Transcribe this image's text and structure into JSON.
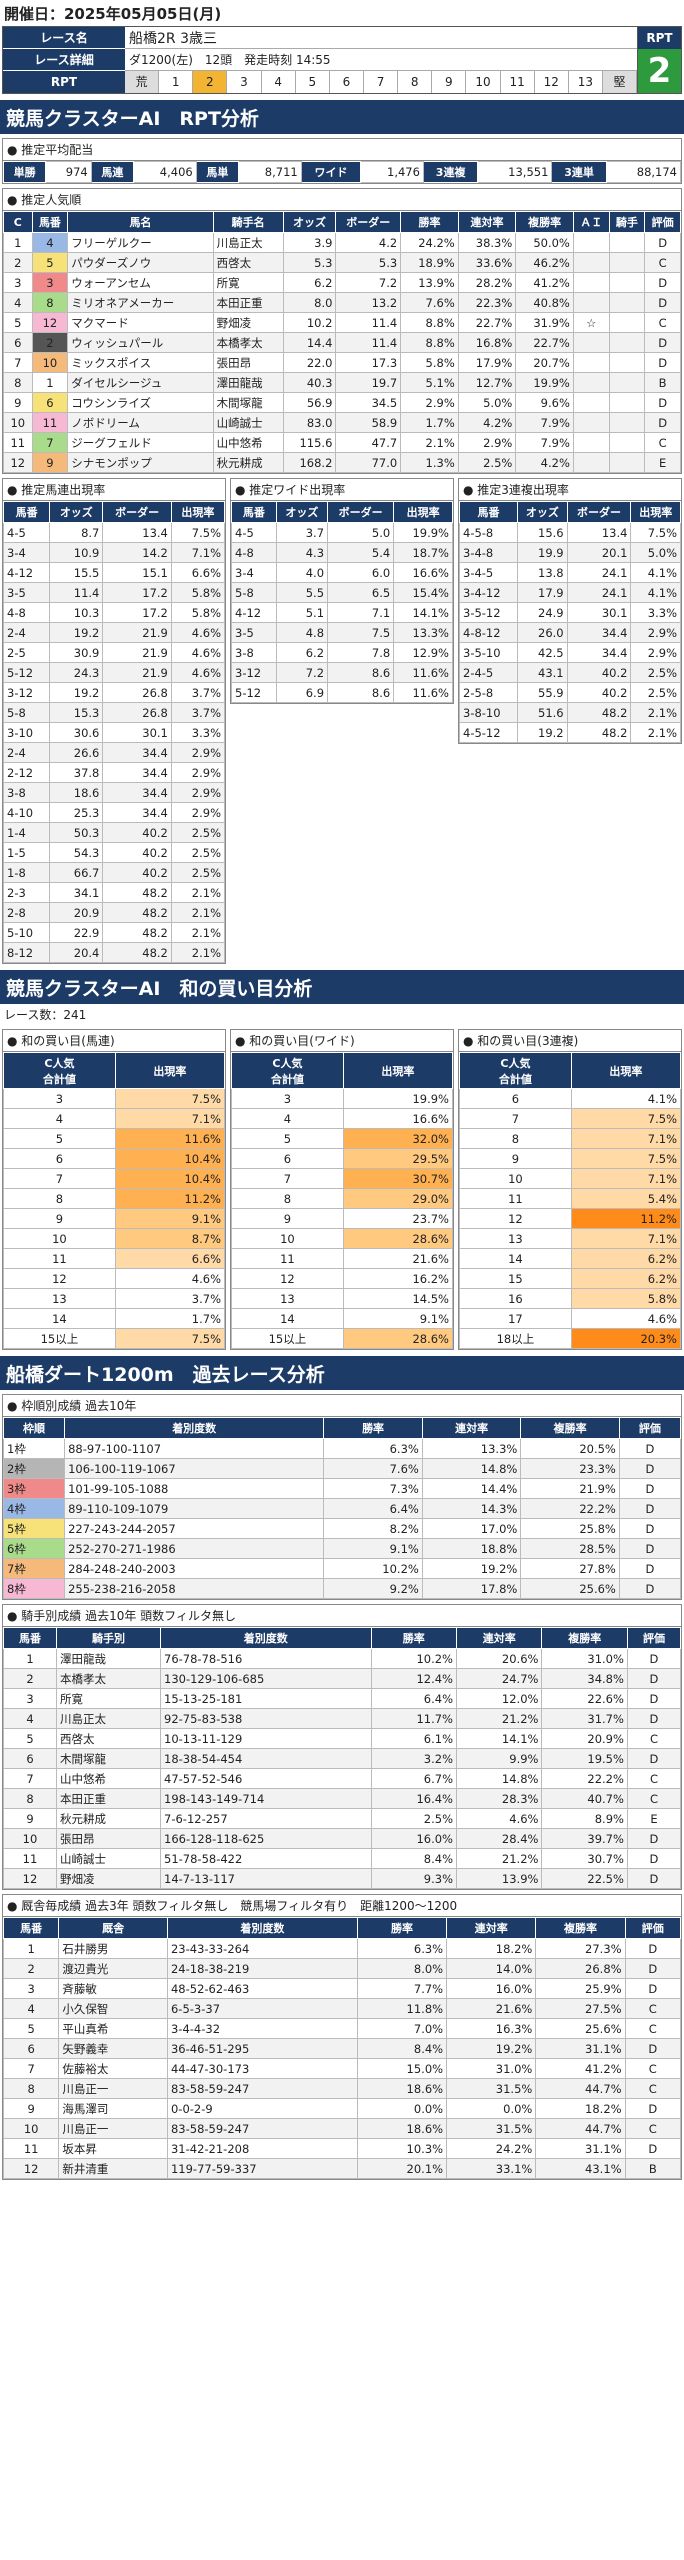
{
  "header": {
    "date": "開催日：2025年05月05日(月)",
    "race_name_label": "レース名",
    "race_name": "船橋2R 3歳三",
    "race_detail_label": "レース詳細",
    "race_detail": "ダ1200(左)　12頭　発走時刻 14:55",
    "rpt_label": "RPT",
    "rpt_value": "2",
    "rpt_scale": [
      "荒",
      "1",
      "2",
      "3",
      "4",
      "5",
      "6",
      "7",
      "8",
      "9",
      "10",
      "11",
      "12",
      "13",
      "堅"
    ]
  },
  "sec1": "競馬クラスターAI　RPT分析",
  "payout": {
    "title": "● 推定平均配当",
    "items": [
      [
        "単勝",
        "974"
      ],
      [
        "馬連",
        "4,406"
      ],
      [
        "馬単",
        "8,711"
      ],
      [
        "ワイド",
        "1,476"
      ],
      [
        "3連複",
        "13,551"
      ],
      [
        "3連単",
        "88,174"
      ]
    ]
  },
  "pop": {
    "title": "● 推定人気順",
    "headers": [
      "C",
      "馬番",
      "馬名",
      "騎手名",
      "オッズ",
      "ボーダー",
      "勝率",
      "連対率",
      "複勝率",
      "ＡＩ",
      "騎手",
      "評価"
    ],
    "rows": [
      [
        "1",
        "4",
        "フリーゲルクー",
        "川島正太",
        "3.9",
        "4.2",
        "24.2%",
        "38.3%",
        "50.0%",
        "",
        "",
        "D"
      ],
      [
        "2",
        "5",
        "パウダーズノウ",
        "西啓太",
        "5.3",
        "5.3",
        "18.9%",
        "33.6%",
        "46.2%",
        "",
        "",
        "C"
      ],
      [
        "3",
        "3",
        "ウォーアンセム",
        "所寛",
        "6.2",
        "7.2",
        "13.9%",
        "28.2%",
        "41.2%",
        "",
        "",
        "D"
      ],
      [
        "4",
        "8",
        "ミリオネアメーカー",
        "本田正重",
        "8.0",
        "13.2",
        "7.6%",
        "22.3%",
        "40.8%",
        "",
        "",
        "D"
      ],
      [
        "5",
        "12",
        "マクマード",
        "野畑凌",
        "10.2",
        "11.4",
        "8.8%",
        "22.7%",
        "31.9%",
        "☆",
        "",
        "C"
      ],
      [
        "6",
        "2",
        "ウィッシュパール",
        "本橋孝太",
        "14.4",
        "11.4",
        "8.8%",
        "16.8%",
        "22.7%",
        "",
        "",
        "D"
      ],
      [
        "7",
        "10",
        "ミックスポイス",
        "張田昂",
        "22.0",
        "17.3",
        "5.8%",
        "17.9%",
        "20.7%",
        "",
        "",
        "D"
      ],
      [
        "8",
        "1",
        "ダイセルシージュ",
        "澤田龍哉",
        "40.3",
        "19.7",
        "5.1%",
        "12.7%",
        "19.9%",
        "",
        "",
        "B"
      ],
      [
        "9",
        "6",
        "コウシンライズ",
        "木間塚龍",
        "56.9",
        "34.5",
        "2.9%",
        "5.0%",
        "9.6%",
        "",
        "",
        "D"
      ],
      [
        "10",
        "11",
        "ノボドリーム",
        "山崎誠士",
        "83.0",
        "58.9",
        "1.7%",
        "4.2%",
        "7.9%",
        "",
        "",
        "D"
      ],
      [
        "11",
        "7",
        "ジーグフェルド",
        "山中悠希",
        "115.6",
        "47.7",
        "2.1%",
        "2.9%",
        "7.9%",
        "",
        "",
        "C"
      ],
      [
        "12",
        "9",
        "シナモンポップ",
        "秋元耕成",
        "168.2",
        "77.0",
        "1.3%",
        "2.5%",
        "4.2%",
        "",
        "",
        "E"
      ]
    ]
  },
  "umaren": {
    "title": "● 推定馬連出現率",
    "headers": [
      "馬番",
      "オッズ",
      "ボーダー",
      "出現率"
    ],
    "rows": [
      [
        "4-5",
        "8.7",
        "13.4",
        "7.5%"
      ],
      [
        "3-4",
        "10.9",
        "14.2",
        "7.1%"
      ],
      [
        "4-12",
        "15.5",
        "15.1",
        "6.6%"
      ],
      [
        "3-5",
        "11.4",
        "17.2",
        "5.8%"
      ],
      [
        "4-8",
        "10.3",
        "17.2",
        "5.8%"
      ],
      [
        "2-4",
        "19.2",
        "21.9",
        "4.6%"
      ],
      [
        "2-5",
        "30.9",
        "21.9",
        "4.6%"
      ],
      [
        "5-12",
        "24.3",
        "21.9",
        "4.6%"
      ],
      [
        "3-12",
        "19.2",
        "26.8",
        "3.7%"
      ],
      [
        "5-8",
        "15.3",
        "26.8",
        "3.7%"
      ],
      [
        "3-10",
        "30.6",
        "30.1",
        "3.3%"
      ],
      [
        "2-4",
        "26.6",
        "34.4",
        "2.9%"
      ],
      [
        "2-12",
        "37.8",
        "34.4",
        "2.9%"
      ],
      [
        "3-8",
        "18.6",
        "34.4",
        "2.9%"
      ],
      [
        "4-10",
        "25.3",
        "34.4",
        "2.9%"
      ],
      [
        "1-4",
        "50.3",
        "40.2",
        "2.5%"
      ],
      [
        "1-5",
        "54.3",
        "40.2",
        "2.5%"
      ],
      [
        "1-8",
        "66.7",
        "40.2",
        "2.5%"
      ],
      [
        "2-3",
        "34.1",
        "48.2",
        "2.1%"
      ],
      [
        "2-8",
        "20.9",
        "48.2",
        "2.1%"
      ],
      [
        "5-10",
        "22.9",
        "48.2",
        "2.1%"
      ],
      [
        "8-12",
        "20.4",
        "48.2",
        "2.1%"
      ]
    ]
  },
  "wide": {
    "title": "● 推定ワイド出現率",
    "headers": [
      "馬番",
      "オッズ",
      "ボーダー",
      "出現率"
    ],
    "rows": [
      [
        "4-5",
        "3.7",
        "5.0",
        "19.9%"
      ],
      [
        "4-8",
        "4.3",
        "5.4",
        "18.7%"
      ],
      [
        "3-4",
        "4.0",
        "6.0",
        "16.6%"
      ],
      [
        "5-8",
        "5.5",
        "6.5",
        "15.4%"
      ],
      [
        "4-12",
        "5.1",
        "7.1",
        "14.1%"
      ],
      [
        "3-5",
        "4.8",
        "7.5",
        "13.3%"
      ],
      [
        "3-8",
        "6.2",
        "7.8",
        "12.9%"
      ],
      [
        "3-12",
        "7.2",
        "8.6",
        "11.6%"
      ],
      [
        "5-12",
        "6.9",
        "8.6",
        "11.6%"
      ]
    ]
  },
  "sanren": {
    "title": "● 推定3連複出現率",
    "headers": [
      "馬番",
      "オッズ",
      "ボーダー",
      "出現率"
    ],
    "rows": [
      [
        "4-5-8",
        "15.6",
        "13.4",
        "7.5%"
      ],
      [
        "3-4-8",
        "19.9",
        "20.1",
        "5.0%"
      ],
      [
        "3-4-5",
        "13.8",
        "24.1",
        "4.1%"
      ],
      [
        "3-4-12",
        "17.9",
        "24.1",
        "4.1%"
      ],
      [
        "3-5-12",
        "24.9",
        "30.1",
        "3.3%"
      ],
      [
        "4-8-12",
        "26.0",
        "34.4",
        "2.9%"
      ],
      [
        "3-5-10",
        "42.5",
        "34.4",
        "2.9%"
      ],
      [
        "2-4-5",
        "43.1",
        "40.2",
        "2.5%"
      ],
      [
        "2-5-8",
        "55.9",
        "40.2",
        "2.5%"
      ],
      [
        "3-8-10",
        "51.6",
        "48.2",
        "2.1%"
      ],
      [
        "4-5-12",
        "19.2",
        "48.2",
        "2.1%"
      ]
    ]
  },
  "sec2": "競馬クラスターAI　和の買い目分析",
  "race_count": "レース数：241",
  "wa": [
    {
      "title": "● 和の買い目(馬連)",
      "h1": "C人気\n合計値",
      "h2": "出現率",
      "rows": [
        [
          "3",
          "7.5%"
        ],
        [
          "4",
          "7.1%"
        ],
        [
          "5",
          "11.6%"
        ],
        [
          "6",
          "10.4%"
        ],
        [
          "7",
          "10.4%"
        ],
        [
          "8",
          "11.2%"
        ],
        [
          "9",
          "9.1%"
        ],
        [
          "10",
          "8.7%"
        ],
        [
          "11",
          "6.6%"
        ],
        [
          "12",
          "4.6%"
        ],
        [
          "13",
          "3.7%"
        ],
        [
          "14",
          "1.7%"
        ],
        [
          "15以上",
          "7.5%"
        ]
      ],
      "lv": [
        1,
        1,
        3,
        3,
        3,
        3,
        2,
        2,
        1,
        0,
        0,
        0,
        1
      ]
    },
    {
      "title": "● 和の買い目(ワイド)",
      "h1": "C人気\n合計値",
      "h2": "出現率",
      "rows": [
        [
          "3",
          "19.9%"
        ],
        [
          "4",
          "16.6%"
        ],
        [
          "5",
          "32.0%"
        ],
        [
          "6",
          "29.5%"
        ],
        [
          "7",
          "30.7%"
        ],
        [
          "8",
          "29.0%"
        ],
        [
          "9",
          "23.7%"
        ],
        [
          "10",
          "28.6%"
        ],
        [
          "11",
          "21.6%"
        ],
        [
          "12",
          "16.2%"
        ],
        [
          "13",
          "14.5%"
        ],
        [
          "14",
          "9.1%"
        ],
        [
          "15以上",
          "28.6%"
        ]
      ],
      "lv": [
        0,
        0,
        3,
        2,
        3,
        2,
        0,
        2,
        0,
        0,
        0,
        0,
        2
      ]
    },
    {
      "title": "● 和の買い目(3連複)",
      "h1": "C人気\n合計値",
      "h2": "出現率",
      "rows": [
        [
          "6",
          "4.1%"
        ],
        [
          "7",
          "7.5%"
        ],
        [
          "8",
          "7.1%"
        ],
        [
          "9",
          "7.5%"
        ],
        [
          "10",
          "7.1%"
        ],
        [
          "11",
          "5.4%"
        ],
        [
          "12",
          "11.2%"
        ],
        [
          "13",
          "7.1%"
        ],
        [
          "14",
          "6.2%"
        ],
        [
          "15",
          "6.2%"
        ],
        [
          "16",
          "5.8%"
        ],
        [
          "17",
          "4.6%"
        ],
        [
          "18以上",
          "20.3%"
        ]
      ],
      "lv": [
        0,
        1,
        1,
        1,
        1,
        1,
        4,
        1,
        1,
        1,
        1,
        0,
        4
      ]
    }
  ],
  "sec3": "船橋ダート1200m　過去レース分析",
  "waku": {
    "title": "● 枠順別成績 過去10年",
    "headers": [
      "枠順",
      "着別度数",
      "勝率",
      "連対率",
      "複勝率",
      "評価"
    ],
    "rows": [
      [
        "1枠",
        "88-97-100-1107",
        "6.3%",
        "13.3%",
        "20.5%",
        "D"
      ],
      [
        "2枠",
        "106-100-119-1067",
        "7.6%",
        "14.8%",
        "23.3%",
        "D"
      ],
      [
        "3枠",
        "101-99-105-1088",
        "7.3%",
        "14.4%",
        "21.9%",
        "D"
      ],
      [
        "4枠",
        "89-110-109-1079",
        "6.4%",
        "14.3%",
        "22.2%",
        "D"
      ],
      [
        "5枠",
        "227-243-244-2057",
        "8.2%",
        "17.0%",
        "25.8%",
        "D"
      ],
      [
        "6枠",
        "252-270-271-1986",
        "9.1%",
        "18.8%",
        "28.5%",
        "D"
      ],
      [
        "7枠",
        "284-248-240-2003",
        "10.2%",
        "19.2%",
        "27.8%",
        "D"
      ],
      [
        "8枠",
        "255-238-216-2058",
        "9.2%",
        "17.8%",
        "25.6%",
        "D"
      ]
    ],
    "colors": [
      "#ffffff",
      "#b5b5b5",
      "#f08a8a",
      "#9ab8e6",
      "#f7e27a",
      "#a8dc8a",
      "#f5b97a",
      "#f7b8d4"
    ]
  },
  "jockey": {
    "title": "● 騎手別成績 過去10年 頭数フィルタ無し",
    "headers": [
      "馬番",
      "騎手別",
      "着別度数",
      "勝率",
      "連対率",
      "複勝率",
      "評価"
    ],
    "rows": [
      [
        "1",
        "澤田龍哉",
        "76-78-78-516",
        "10.2%",
        "20.6%",
        "31.0%",
        "D"
      ],
      [
        "2",
        "本橋孝太",
        "130-129-106-685",
        "12.4%",
        "24.7%",
        "34.8%",
        "D"
      ],
      [
        "3",
        "所寛",
        "15-13-25-181",
        "6.4%",
        "12.0%",
        "22.6%",
        "D"
      ],
      [
        "4",
        "川島正太",
        "92-75-83-538",
        "11.7%",
        "21.2%",
        "31.7%",
        "D"
      ],
      [
        "5",
        "西啓太",
        "10-13-11-129",
        "6.1%",
        "14.1%",
        "20.9%",
        "C"
      ],
      [
        "6",
        "木間塚龍",
        "18-38-54-454",
        "3.2%",
        "9.9%",
        "19.5%",
        "D"
      ],
      [
        "7",
        "山中悠希",
        "47-57-52-546",
        "6.7%",
        "14.8%",
        "22.2%",
        "C"
      ],
      [
        "8",
        "本田正重",
        "198-143-149-714",
        "16.4%",
        "28.3%",
        "40.7%",
        "C"
      ],
      [
        "9",
        "秋元耕成",
        "7-6-12-257",
        "2.5%",
        "4.6%",
        "8.9%",
        "E"
      ],
      [
        "10",
        "張田昂",
        "166-128-118-625",
        "16.0%",
        "28.4%",
        "39.7%",
        "D"
      ],
      [
        "11",
        "山崎誠士",
        "51-78-58-422",
        "8.4%",
        "21.2%",
        "30.7%",
        "D"
      ],
      [
        "12",
        "野畑凌",
        "14-7-13-117",
        "9.3%",
        "13.9%",
        "22.5%",
        "D"
      ]
    ],
    "pink": [
      4,
      7
    ]
  },
  "trainer": {
    "title": "● 厩舎毎成績 過去3年 頭数フィルタ無し　競馬場フィルタ有り　距離1200～1200",
    "headers": [
      "馬番",
      "厩舎",
      "着別度数",
      "勝率",
      "連対率",
      "複勝率",
      "評価"
    ],
    "rows": [
      [
        "1",
        "石井勝男",
        "23-43-33-264",
        "6.3%",
        "18.2%",
        "27.3%",
        "D"
      ],
      [
        "2",
        "渡辺貴光",
        "24-18-38-219",
        "8.0%",
        "14.0%",
        "26.8%",
        "D"
      ],
      [
        "3",
        "斉藤敏",
        "48-52-62-463",
        "7.7%",
        "16.0%",
        "25.9%",
        "D"
      ],
      [
        "4",
        "小久保智",
        "6-5-3-37",
        "11.8%",
        "21.6%",
        "27.5%",
        "C"
      ],
      [
        "5",
        "平山真希",
        "3-4-4-32",
        "7.0%",
        "16.3%",
        "25.6%",
        "C"
      ],
      [
        "6",
        "矢野義幸",
        "36-46-51-295",
        "8.4%",
        "19.2%",
        "31.1%",
        "D"
      ],
      [
        "7",
        "佐藤裕太",
        "44-47-30-173",
        "15.0%",
        "31.0%",
        "41.2%",
        "C"
      ],
      [
        "8",
        "川島正一",
        "83-58-59-247",
        "18.6%",
        "31.5%",
        "44.7%",
        "C"
      ],
      [
        "9",
        "海馬澤司",
        "0-0-2-9",
        "0.0%",
        "0.0%",
        "18.2%",
        "D"
      ],
      [
        "10",
        "川島正一",
        "83-58-59-247",
        "18.6%",
        "31.5%",
        "44.7%",
        "C"
      ],
      [
        "11",
        "坂本昇",
        "31-42-21-208",
        "10.3%",
        "24.2%",
        "31.1%",
        "D"
      ],
      [
        "12",
        "新井清重",
        "119-77-59-337",
        "20.1%",
        "33.1%",
        "43.1%",
        "B"
      ]
    ],
    "pink": [
      4,
      5,
      12
    ]
  },
  "uma_colors": [
    "#ffffff",
    "#555555",
    "#f08a8a",
    "#9ab8e6",
    "#f7e27a",
    "#a8dc8a",
    "#f5b97a",
    "#f7b8d4"
  ]
}
